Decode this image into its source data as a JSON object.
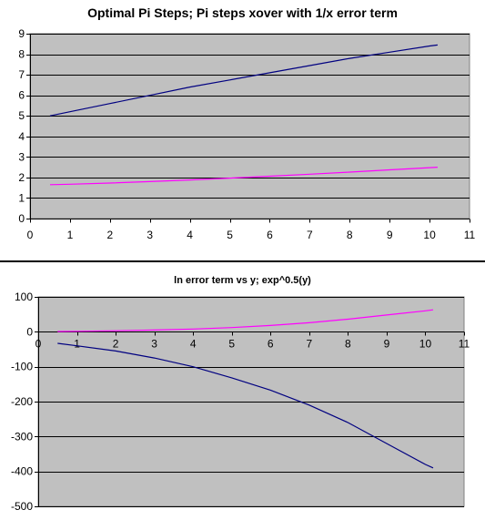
{
  "chart_data": [
    {
      "type": "line",
      "title": "Optimal Pi Steps; Pi steps xover with 1/x error term",
      "xlabel": "",
      "ylabel": "",
      "xlim": [
        0,
        11
      ],
      "ylim": [
        0,
        9
      ],
      "xticks": [
        0,
        1,
        2,
        3,
        4,
        5,
        6,
        7,
        8,
        9,
        10,
        11
      ],
      "yticks": [
        0,
        1,
        2,
        3,
        4,
        5,
        6,
        7,
        8,
        9
      ],
      "grid": true,
      "legend": "none",
      "background": "#c0c0c0",
      "series": [
        {
          "color": "#000080",
          "x": [
            0.5,
            1,
            2,
            3,
            4,
            5,
            6,
            7,
            8,
            9,
            10,
            10.2
          ],
          "y": [
            5.0,
            5.2,
            5.6,
            6.0,
            6.4,
            6.75,
            7.1,
            7.45,
            7.8,
            8.1,
            8.4,
            8.45
          ]
        },
        {
          "color": "#ff00ff",
          "x": [
            0.5,
            1,
            2,
            3,
            4,
            5,
            6,
            7,
            8,
            9,
            10,
            10.2
          ],
          "y": [
            1.65,
            1.67,
            1.73,
            1.8,
            1.88,
            1.97,
            2.06,
            2.16,
            2.26,
            2.37,
            2.48,
            2.5
          ]
        }
      ]
    },
    {
      "type": "line",
      "title": "ln error term vs y; exp^0.5(y)",
      "xlabel": "",
      "ylabel": "",
      "xlim": [
        0,
        11
      ],
      "ylim": [
        -500,
        100
      ],
      "xticks": [
        0,
        1,
        2,
        3,
        4,
        5,
        6,
        7,
        8,
        9,
        10,
        11
      ],
      "yticks": [
        100,
        0,
        -100,
        -200,
        -300,
        -400,
        -500
      ],
      "grid": true,
      "legend": "none",
      "background": "#c0c0c0",
      "series": [
        {
          "color": "#000080",
          "x": [
            0.5,
            1,
            2,
            3,
            4,
            5,
            6,
            7,
            8,
            9,
            10,
            10.2
          ],
          "y": [
            -33,
            -40,
            -55,
            -75,
            -100,
            -132,
            -167,
            -210,
            -260,
            -320,
            -380,
            -390
          ]
        },
        {
          "color": "#ff00ff",
          "x": [
            0.5,
            1,
            2,
            3,
            4,
            5,
            6,
            7,
            8,
            9,
            10,
            10.2
          ],
          "y": [
            1,
            1.5,
            3,
            5,
            8,
            12,
            18,
            26,
            36,
            48,
            60,
            63
          ]
        }
      ]
    }
  ]
}
